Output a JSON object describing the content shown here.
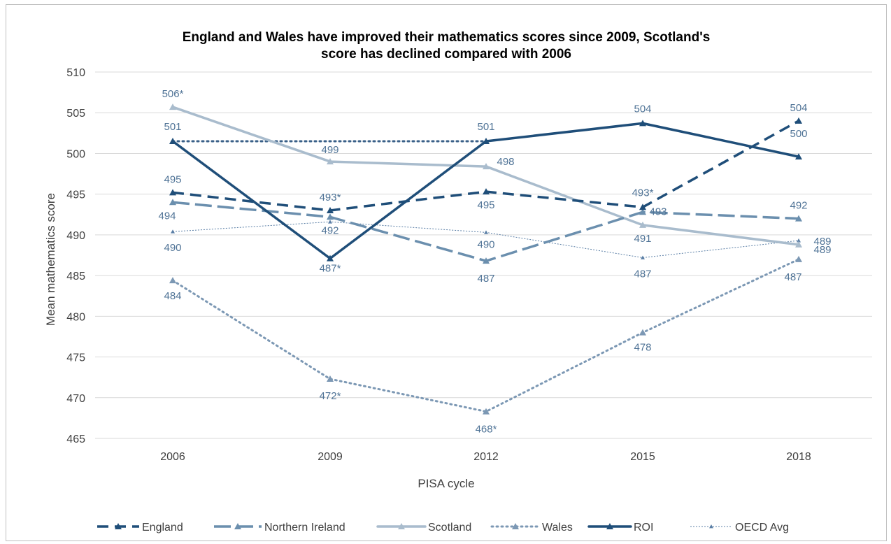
{
  "chart_data": {
    "type": "line",
    "title_line1": "England and Wales have improved their mathematics scores since 2009, Scotland's",
    "title_line2": "score has declined compared with 2006",
    "xlabel": "PISA cycle",
    "ylabel": "Mean mathematics score",
    "categories": [
      "2006",
      "2009",
      "2012",
      "2015",
      "2018"
    ],
    "ylim": [
      465,
      510
    ],
    "yticks": [
      465,
      470,
      475,
      480,
      485,
      490,
      495,
      500,
      505,
      510
    ],
    "grid": "horizontal",
    "legend_position": "bottom",
    "series": [
      {
        "name": "England",
        "values": [
          495.2,
          493,
          495.3,
          493.4,
          504
        ],
        "labels": [
          "495",
          "493*",
          "495",
          "493*",
          "504"
        ],
        "color": "#1f4e79",
        "style": "long-dash-thick"
      },
      {
        "name": "Northern Ireland",
        "values": [
          494,
          492.2,
          486.8,
          492.8,
          492
        ],
        "labels": [
          "494",
          "492",
          "487",
          "493",
          "492"
        ],
        "color": "#6b8fae",
        "style": "dash-dot-thick"
      },
      {
        "name": "Scotland",
        "values": [
          505.7,
          499,
          498.4,
          491.2,
          488.8
        ],
        "labels": [
          "506*",
          "499",
          "498",
          "491",
          "489"
        ],
        "color": "#a9bccd",
        "style": "solid-thick"
      },
      {
        "name": "Wales",
        "values": [
          484.4,
          472.3,
          468.3,
          478,
          487
        ],
        "labels": [
          "484",
          "472*",
          "468*",
          "478",
          "487"
        ],
        "color": "#7c98b4",
        "style": "dotted-thick"
      },
      {
        "name": "ROI",
        "values": [
          501.5,
          487.1,
          501.5,
          503.7,
          499.6
        ],
        "labels": [
          "501",
          "487*",
          "501",
          "504",
          "500"
        ],
        "color": "#1f4e79",
        "style": "solid-thick"
      },
      {
        "name": "OECD Avg",
        "values": [
          490.4,
          491.6,
          490.3,
          487.2,
          489.3
        ],
        "labels": [
          "490",
          "",
          "490",
          "487",
          "489"
        ],
        "color": "#5b7fa6",
        "style": "fine-dash"
      }
    ],
    "reference_line": {
      "description_color": "#3a6088",
      "y": 501.5,
      "from_category": "2006",
      "to_category": "2012"
    }
  }
}
